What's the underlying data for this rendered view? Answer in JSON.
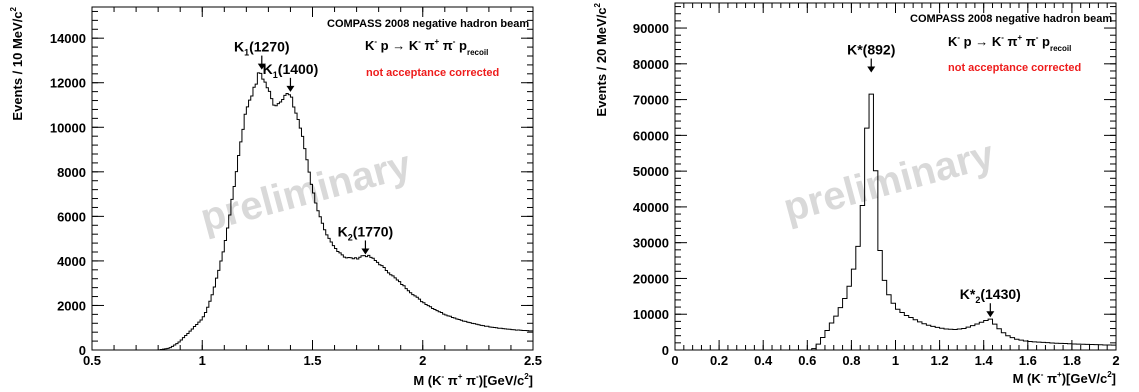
{
  "chart_data": [
    {
      "type": "histogram",
      "title": "COMPASS 2008 negative hadron beam",
      "reaction": {
        "lhs": "K",
        "lhs_sup": "-",
        "mid1": " p → K",
        "mid1_sup": "-",
        "pi1": " π",
        "pi1_sup": "+",
        "pi2": " π",
        "pi2_sup": "-",
        "p": " p",
        "p_sub": "recoil"
      },
      "note": "not acceptance corrected",
      "watermark": "preliminary",
      "xlabel": {
        "a": "M (K",
        "a_sup": "-",
        "b": " π",
        "b_sup": "+",
        "c": " π",
        "c_sup": "-",
        "d": ")[GeV/c",
        "d_sup": "2",
        "e": "]"
      },
      "ylabel": {
        "a": "Events / 10 MeV/c",
        "a_sup": "2"
      },
      "xlim": [
        0.5,
        2.5
      ],
      "ylim": [
        0,
        15400
      ],
      "x_ticks": [
        0.5,
        1,
        1.5,
        2,
        2.5
      ],
      "x_tick_labels": [
        "0.5",
        "1",
        "1.5",
        "2",
        "2.5"
      ],
      "y_ticks": [
        0,
        2000,
        4000,
        6000,
        8000,
        10000,
        12000,
        14000
      ],
      "y_tick_labels": [
        "0",
        "2000",
        "4000",
        "6000",
        "8000",
        "10000",
        "12000",
        "14000"
      ],
      "bin_width": 0.01,
      "points": [
        [
          0.8,
          0
        ],
        [
          0.85,
          80
        ],
        [
          0.88,
          250
        ],
        [
          0.9,
          400
        ],
        [
          0.95,
          900
        ],
        [
          1.0,
          1400
        ],
        [
          1.03,
          2000
        ],
        [
          1.06,
          3000
        ],
        [
          1.08,
          3800
        ],
        [
          1.1,
          4600
        ],
        [
          1.12,
          5800
        ],
        [
          1.14,
          7000
        ],
        [
          1.16,
          8400
        ],
        [
          1.18,
          9700
        ],
        [
          1.2,
          10800
        ],
        [
          1.22,
          11400
        ],
        [
          1.24,
          11800
        ],
        [
          1.25,
          12200
        ],
        [
          1.26,
          12500
        ],
        [
          1.27,
          12350
        ],
        [
          1.28,
          12100
        ],
        [
          1.3,
          11700
        ],
        [
          1.32,
          11100
        ],
        [
          1.34,
          11000
        ],
        [
          1.36,
          11300
        ],
        [
          1.38,
          11500
        ],
        [
          1.4,
          11400
        ],
        [
          1.42,
          10800
        ],
        [
          1.44,
          10200
        ],
        [
          1.46,
          9300
        ],
        [
          1.48,
          8300
        ],
        [
          1.5,
          7200
        ],
        [
          1.53,
          6100
        ],
        [
          1.56,
          5200
        ],
        [
          1.6,
          4600
        ],
        [
          1.65,
          4150
        ],
        [
          1.7,
          4100
        ],
        [
          1.73,
          4250
        ],
        [
          1.76,
          4200
        ],
        [
          1.8,
          3900
        ],
        [
          1.85,
          3450
        ],
        [
          1.9,
          3000
        ],
        [
          1.95,
          2550
        ],
        [
          2.0,
          2150
        ],
        [
          2.05,
          1850
        ],
        [
          2.1,
          1600
        ],
        [
          2.15,
          1420
        ],
        [
          2.2,
          1260
        ],
        [
          2.25,
          1140
        ],
        [
          2.3,
          1050
        ],
        [
          2.35,
          980
        ],
        [
          2.4,
          920
        ],
        [
          2.45,
          880
        ],
        [
          2.5,
          850
        ]
      ],
      "annotations": [
        {
          "name": "K",
          "sub": "1",
          "rest": "(1270)",
          "x": 1.27,
          "y": 12500
        },
        {
          "name": "K",
          "sub": "1",
          "rest": "(1400)",
          "x": 1.4,
          "y": 11500
        },
        {
          "name": "K",
          "sub": "2",
          "rest": "(1770)",
          "x": 1.74,
          "y": 4200
        }
      ]
    },
    {
      "type": "histogram",
      "title": "COMPASS 2008 negative hadron beam",
      "reaction": {
        "lhs": "K",
        "lhs_sup": "-",
        "mid1": " p → K",
        "mid1_sup": "-",
        "pi1": " π",
        "pi1_sup": "+",
        "pi2": " π",
        "pi2_sup": "-",
        "p": " p",
        "p_sub": "recoil"
      },
      "note": "not acceptance corrected",
      "watermark": "preliminary",
      "xlabel": {
        "a": "M (K",
        "a_sup": "-",
        "b": " π",
        "b_sup": "+",
        "c": "",
        "c_sup": "",
        "d": ")[GeV/c",
        "d_sup": "2",
        "e": "]"
      },
      "ylabel": {
        "a": "Events / 20 MeV/c",
        "a_sup": "2"
      },
      "xlim": [
        0,
        2
      ],
      "ylim": [
        0,
        97000
      ],
      "x_ticks": [
        0,
        0.2,
        0.4,
        0.6,
        0.8,
        1,
        1.2,
        1.4,
        1.6,
        1.8,
        2
      ],
      "x_tick_labels": [
        "0",
        "0.2",
        "0.4",
        "0.6",
        "0.8",
        "1",
        "1.2",
        "1.4",
        "1.6",
        "1.8",
        "2"
      ],
      "y_ticks": [
        0,
        10000,
        20000,
        30000,
        40000,
        50000,
        60000,
        70000,
        80000,
        90000
      ],
      "y_tick_labels": [
        "0",
        "10000",
        "20000",
        "30000",
        "40000",
        "50000",
        "60000",
        "70000",
        "80000",
        "90000"
      ],
      "bin_width": 0.02,
      "points": [
        [
          0.62,
          0
        ],
        [
          0.64,
          800
        ],
        [
          0.66,
          2500
        ],
        [
          0.68,
          4500
        ],
        [
          0.7,
          6500
        ],
        [
          0.72,
          8500
        ],
        [
          0.74,
          10500
        ],
        [
          0.76,
          13000
        ],
        [
          0.78,
          16000
        ],
        [
          0.8,
          20000
        ],
        [
          0.82,
          25500
        ],
        [
          0.84,
          32000
        ],
        [
          0.86,
          48000
        ],
        [
          0.88,
          77000
        ],
        [
          0.9,
          66000
        ],
        [
          0.92,
          34000
        ],
        [
          0.94,
          22000
        ],
        [
          0.96,
          17000
        ],
        [
          0.98,
          14000
        ],
        [
          1.0,
          12000
        ],
        [
          1.04,
          10000
        ],
        [
          1.08,
          8700
        ],
        [
          1.12,
          7600
        ],
        [
          1.16,
          6800
        ],
        [
          1.2,
          6200
        ],
        [
          1.24,
          5800
        ],
        [
          1.28,
          5700
        ],
        [
          1.32,
          6200
        ],
        [
          1.36,
          7000
        ],
        [
          1.4,
          8000
        ],
        [
          1.43,
          8600
        ],
        [
          1.46,
          6500
        ],
        [
          1.5,
          4200
        ],
        [
          1.55,
          3000
        ],
        [
          1.6,
          2400
        ],
        [
          1.7,
          2000
        ],
        [
          1.8,
          1700
        ],
        [
          1.9,
          1500
        ],
        [
          2.0,
          1350
        ]
      ],
      "annotations": [
        {
          "name": "K*",
          "sub": "",
          "rest": "(892)",
          "x": 0.89,
          "y": 77000
        },
        {
          "name": "K*",
          "sub": "2",
          "rest": "(1430)",
          "x": 1.43,
          "y": 8600
        }
      ]
    }
  ]
}
